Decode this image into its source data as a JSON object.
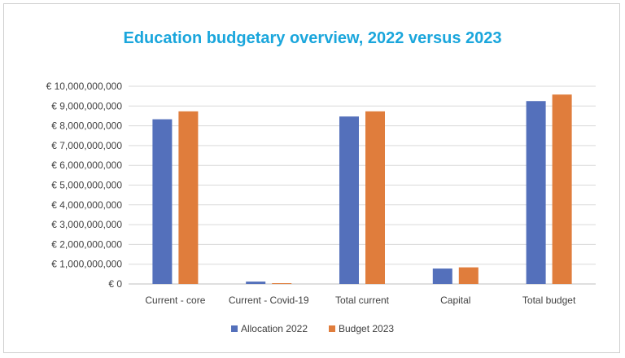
{
  "chart_data": {
    "type": "bar",
    "title": "Education budgetary overview, 2022 versus 2023",
    "xlabel": "",
    "ylabel": "",
    "categories": [
      "Current - core",
      "Current - Covid-19",
      "Total current",
      "Capital",
      "Total budget"
    ],
    "series": [
      {
        "name": "Allocation 2022",
        "color": "#5470bb",
        "values": [
          8330000000,
          120000000,
          8470000000,
          780000000,
          9250000000
        ]
      },
      {
        "name": "Budget 2023",
        "color": "#e07d3c",
        "values": [
          8730000000,
          40000000,
          8730000000,
          840000000,
          9580000000
        ]
      }
    ],
    "ylim": [
      0,
      10000000000
    ],
    "yticks": [
      0,
      1000000000,
      2000000000,
      3000000000,
      4000000000,
      5000000000,
      6000000000,
      7000000000,
      8000000000,
      9000000000,
      10000000000
    ],
    "ytick_labels": [
      "€ 0",
      "€ 1,000,000,000",
      "€ 2,000,000,000",
      "€ 3,000,000,000",
      "€ 4,000,000,000",
      "€ 5,000,000,000",
      "€ 6,000,000,000",
      "€ 7,000,000,000",
      "€ 8,000,000,000",
      "€ 9,000,000,000",
      "€ 10,000,000,000"
    ],
    "grid": true,
    "legend_position": "bottom"
  }
}
